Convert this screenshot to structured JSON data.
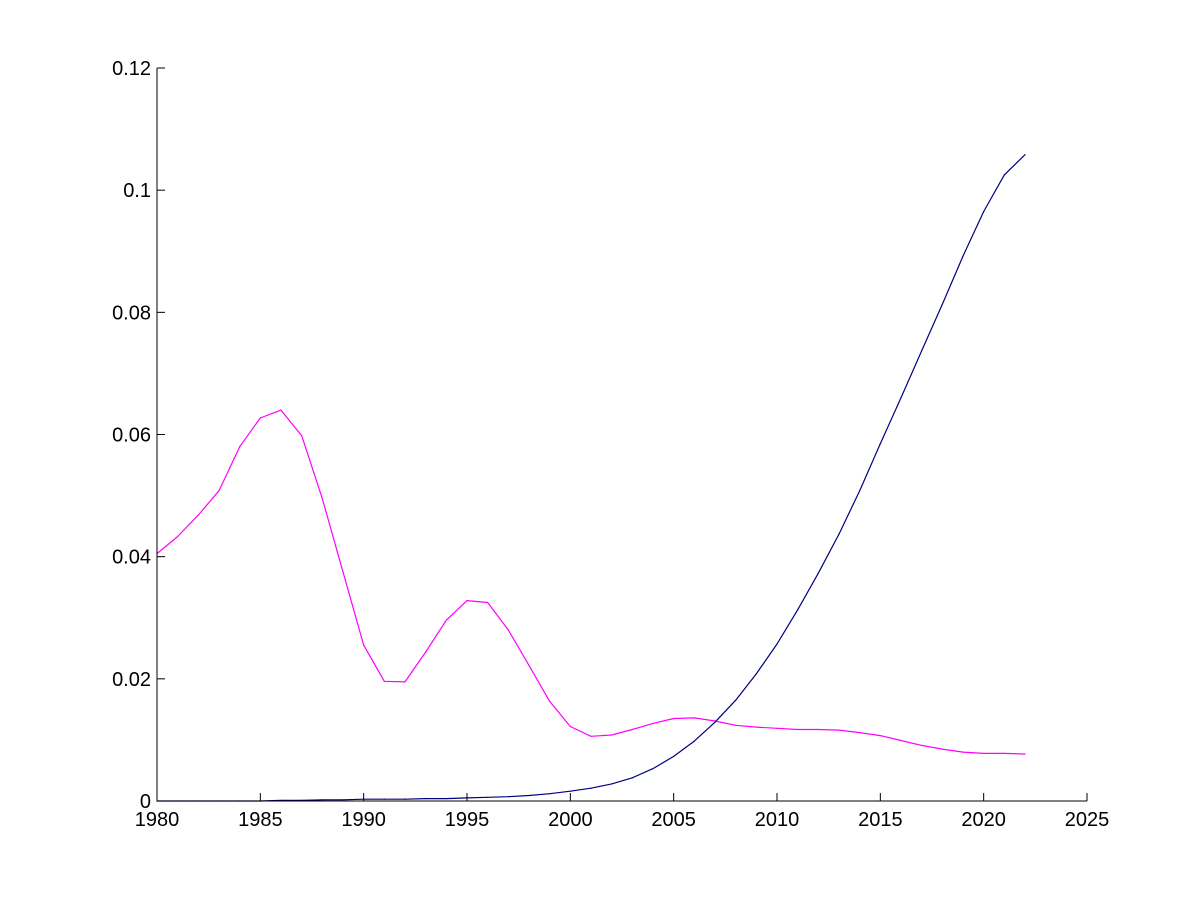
{
  "chart_data": {
    "type": "line",
    "title": "",
    "xlabel": "",
    "ylabel": "",
    "xlim": [
      1980,
      2025
    ],
    "ylim": [
      0,
      0.12
    ],
    "grid": false,
    "xticks": [
      {
        "value": 1980,
        "label": "1980"
      },
      {
        "value": 1985,
        "label": "1985"
      },
      {
        "value": 1990,
        "label": "1990"
      },
      {
        "value": 1995,
        "label": "1995"
      },
      {
        "value": 2000,
        "label": "2000"
      },
      {
        "value": 2005,
        "label": "2005"
      },
      {
        "value": 2010,
        "label": "2010"
      },
      {
        "value": 2015,
        "label": "2015"
      },
      {
        "value": 2020,
        "label": "2020"
      },
      {
        "value": 2025,
        "label": "2025"
      }
    ],
    "yticks": [
      {
        "value": 0,
        "label": "0"
      },
      {
        "value": 0.02,
        "label": "0.02"
      },
      {
        "value": 0.04,
        "label": "0.04"
      },
      {
        "value": 0.06,
        "label": "0.06"
      },
      {
        "value": 0.08,
        "label": "0.08"
      },
      {
        "value": 0.1,
        "label": "0.1"
      },
      {
        "value": 0.12,
        "label": "0.12"
      }
    ],
    "x": [
      1980,
      1981,
      1982,
      1983,
      1984,
      1985,
      1986,
      1987,
      1988,
      1989,
      1990,
      1991,
      1992,
      1993,
      1994,
      1995,
      1996,
      1997,
      1998,
      1999,
      2000,
      2001,
      2002,
      2003,
      2004,
      2005,
      2006,
      2007,
      2008,
      2009,
      2010,
      2011,
      2012,
      2013,
      2014,
      2015,
      2016,
      2017,
      2018,
      2019,
      2020,
      2021,
      2022
    ],
    "series": [
      {
        "color": "#ff00ff",
        "values": [
          0.0405,
          0.0433,
          0.0468,
          0.0508,
          0.058,
          0.0627,
          0.064,
          0.0598,
          0.0495,
          0.0375,
          0.0255,
          0.0196,
          0.0195,
          0.0244,
          0.0296,
          0.0328,
          0.0325,
          0.028,
          0.0222,
          0.0163,
          0.0122,
          0.0106,
          0.0108,
          0.0117,
          0.0127,
          0.0135,
          0.0136,
          0.0131,
          0.0124,
          0.0121,
          0.0119,
          0.0117,
          0.0117,
          0.0116,
          0.0112,
          0.0107,
          0.0099,
          0.0091,
          0.0085,
          0.008,
          0.0078,
          0.0078,
          0.0077
        ]
      },
      {
        "color": "#000080",
        "values": [
          0.0,
          0.0,
          0.0,
          0.0,
          0.0,
          0.0,
          0.0001,
          0.0001,
          0.0002,
          0.0002,
          0.0003,
          0.0003,
          0.0003,
          0.0004,
          0.0004,
          0.0005,
          0.0006,
          0.0007,
          0.0009,
          0.0012,
          0.0016,
          0.0021,
          0.0028,
          0.0038,
          0.0053,
          0.0073,
          0.0098,
          0.0129,
          0.0165,
          0.0208,
          0.0257,
          0.0313,
          0.0373,
          0.0437,
          0.0508,
          0.0585,
          0.066,
          0.0737,
          0.0813,
          0.0892,
          0.0965,
          0.1025,
          0.1058
        ]
      }
    ]
  }
}
